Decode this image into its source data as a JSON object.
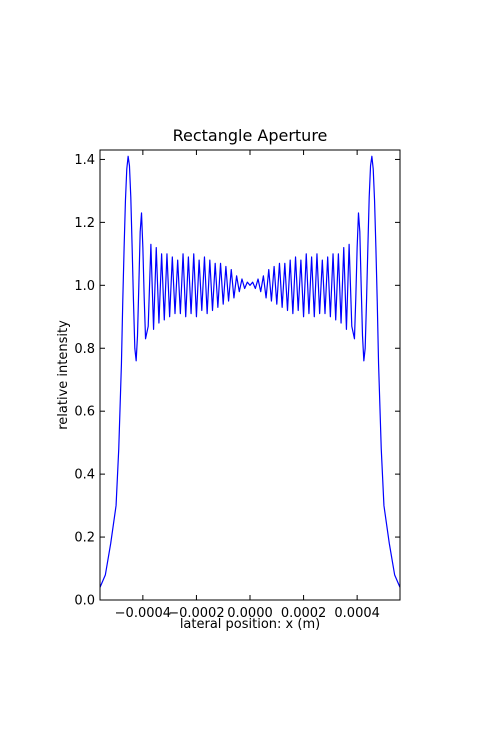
{
  "chart_data": {
    "type": "line",
    "title": "Rectangle Aperture",
    "xlabel": "lateral position: x (m)",
    "ylabel": "relative intensity",
    "xlim": [
      -0.00056,
      0.00056
    ],
    "ylim": [
      0.0,
      1.43
    ],
    "grid": false,
    "line_color": "#0000ff",
    "x_ticks": [
      -0.0004,
      -0.0002,
      0.0,
      0.0002,
      0.0004
    ],
    "x_tick_labels": [
      "−0.0004",
      "−0.0002",
      "0.0000",
      "0.0002",
      "0.0004"
    ],
    "y_ticks": [
      0.0,
      0.2,
      0.4,
      0.6,
      0.8,
      1.0,
      1.2,
      1.4
    ],
    "y_tick_labels": [
      "0.0",
      "0.2",
      "0.4",
      "0.6",
      "0.8",
      "1.0",
      "1.2",
      "1.4"
    ],
    "series": [
      {
        "x": [
          -0.00056,
          -0.00054,
          -0.00052,
          -0.0005,
          -0.00049,
          -0.00048,
          -0.000475,
          -0.00047,
          -0.000465,
          -0.00046,
          -0.000455,
          -0.00045,
          -0.000445,
          -0.00044,
          -0.000435,
          -0.00043,
          -0.000425,
          -0.00042,
          -0.000415,
          -0.00041,
          -0.000405,
          -0.0004,
          -0.000395,
          -0.00039,
          -0.00038,
          -0.00037,
          -0.00036,
          -0.00035,
          -0.00034,
          -0.00033,
          -0.00032,
          -0.00031,
          -0.0003,
          -0.00029,
          -0.00028,
          -0.00027,
          -0.00026,
          -0.00025,
          -0.00024,
          -0.00023,
          -0.00022,
          -0.00021,
          -0.0002,
          -0.00019,
          -0.00018,
          -0.00017,
          -0.00016,
          -0.00015,
          -0.00014,
          -0.00013,
          -0.00012,
          -0.00011,
          -0.0001,
          -9e-05,
          -8e-05,
          -7e-05,
          -6e-05,
          -5e-05,
          -4e-05,
          -3e-05,
          -2e-05,
          -1e-05,
          0.0,
          1e-05,
          2e-05,
          3e-05,
          4e-05,
          5e-05,
          6e-05,
          7e-05,
          8e-05,
          9e-05,
          0.0001,
          0.00011,
          0.00012,
          0.00013,
          0.00014,
          0.00015,
          0.00016,
          0.00017,
          0.00018,
          0.00019,
          0.0002,
          0.00021,
          0.00022,
          0.00023,
          0.00024,
          0.00025,
          0.00026,
          0.00027,
          0.00028,
          0.00029,
          0.0003,
          0.00031,
          0.00032,
          0.00033,
          0.00034,
          0.00035,
          0.00036,
          0.00037,
          0.00038,
          0.00039,
          0.000395,
          0.0004,
          0.000405,
          0.00041,
          0.000415,
          0.00042,
          0.000425,
          0.00043,
          0.000435,
          0.00044,
          0.000445,
          0.00045,
          0.000455,
          0.00046,
          0.000465,
          0.00047,
          0.000475,
          0.00048,
          0.00049,
          0.0005,
          0.00052,
          0.00054,
          0.00056
        ],
        "y": [
          0.04,
          0.08,
          0.18,
          0.3,
          0.48,
          0.75,
          0.95,
          1.12,
          1.27,
          1.37,
          1.41,
          1.38,
          1.28,
          1.12,
          0.95,
          0.8,
          0.76,
          0.84,
          1.0,
          1.17,
          1.23,
          1.12,
          0.96,
          0.83,
          0.87,
          1.13,
          0.86,
          1.12,
          0.88,
          1.1,
          0.89,
          1.1,
          0.9,
          1.09,
          0.91,
          1.08,
          0.91,
          1.1,
          0.9,
          1.09,
          0.91,
          1.1,
          0.9,
          1.08,
          0.92,
          1.09,
          0.91,
          1.08,
          0.92,
          1.07,
          0.93,
          1.07,
          0.94,
          1.06,
          0.95,
          1.05,
          0.96,
          1.03,
          0.98,
          1.02,
          0.99,
          1.01,
          1.0,
          1.01,
          0.99,
          1.02,
          0.98,
          1.03,
          0.96,
          1.05,
          0.95,
          1.06,
          0.94,
          1.07,
          0.93,
          1.07,
          0.92,
          1.08,
          0.91,
          1.09,
          0.92,
          1.08,
          0.9,
          1.1,
          0.91,
          1.09,
          0.9,
          1.1,
          0.91,
          1.08,
          0.91,
          1.09,
          0.9,
          1.1,
          0.89,
          1.1,
          0.88,
          1.12,
          0.86,
          1.13,
          0.87,
          0.83,
          0.96,
          1.12,
          1.23,
          1.17,
          1.0,
          0.84,
          0.76,
          0.8,
          0.95,
          1.12,
          1.28,
          1.38,
          1.41,
          1.37,
          1.27,
          1.12,
          0.95,
          0.75,
          0.48,
          0.3,
          0.18,
          0.08,
          0.04
        ]
      }
    ]
  }
}
